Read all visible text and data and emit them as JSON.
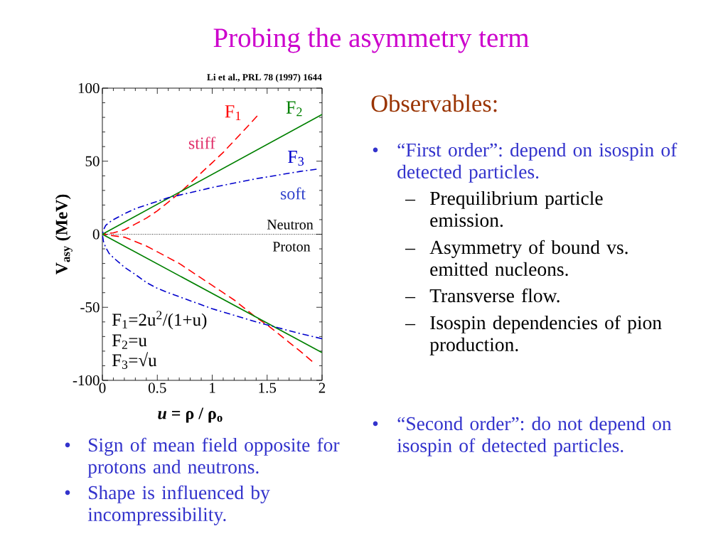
{
  "chart_data": {
    "type": "line",
    "title": "Probing the asymmetry term",
    "xlabel": "*u* = ρ / ρ$_{o}$",
    "ylabel": "V$_{asy}$ (MeV)",
    "xlim": [
      0,
      2
    ],
    "ylim": [
      -100,
      100
    ],
    "xticks": [
      0,
      0.5,
      1,
      1.5,
      2
    ],
    "yticks": [
      -100,
      -50,
      0,
      50,
      100
    ],
    "marker": "none",
    "series": [
      {
        "name": "F$_{1}$",
        "color": "#ff0000",
        "line_style": "dashed",
        "x": [
          1.41,
          1.3,
          1.2,
          1.1,
          1.0,
          0.9,
          0.8,
          0.7,
          0.6,
          0.5,
          0.4,
          0.3,
          0.2,
          0.1,
          0,
          0.2,
          0.3,
          0.4,
          0.5,
          0.6,
          0.7,
          0.8,
          0.9,
          1.0,
          1.1,
          1.2,
          1.3,
          1.4,
          1.5,
          1.6,
          1.7,
          1.8,
          1.91
        ],
        "values": [
          81,
          72,
          64,
          56,
          49,
          42,
          35,
          28,
          22,
          16,
          11,
          7,
          3,
          1,
          0,
          -2,
          -5,
          -8,
          -12,
          -16,
          -20,
          -25,
          -30,
          -35,
          -40,
          -45,
          -51,
          -57,
          -62,
          -68,
          -74,
          -80,
          -87
        ]
      },
      {
        "name": "F$_{2}$",
        "color": "#008000",
        "line_style": "solid",
        "x": [
          2,
          0,
          2
        ],
        "values": [
          82,
          0,
          -81
        ]
      },
      {
        "name": "F$_{3}$",
        "color": "#0000cc",
        "line_style": "dashdot",
        "x": [
          1.95,
          1.8,
          1.6,
          1.4,
          1.2,
          1.0,
          0.8,
          0.6,
          0.4,
          0.3,
          0.2,
          0.1,
          0.06,
          0.03,
          0.01,
          0,
          0.01,
          0.03,
          0.06,
          0.1,
          0.2,
          0.3,
          0.4,
          0.5,
          0.6,
          1.0,
          1.2,
          1.4,
          1.6,
          1.8,
          2.0
        ],
        "values": [
          44.5,
          43,
          40.5,
          38,
          35,
          32,
          28.5,
          25,
          20,
          17.5,
          14,
          10,
          8,
          6,
          3,
          0,
          -5,
          -9,
          -13,
          -16,
          -22.5,
          -27.5,
          -33,
          -37,
          -40,
          -51,
          -55.5,
          -60,
          -64,
          -68,
          -71.5
        ]
      }
    ],
    "ref_lines": [
      {
        "axis": "y",
        "value": 0,
        "color": "#000000",
        "line_style": "dotted"
      }
    ],
    "annotations": [
      "stiff",
      "soft",
      "Neutron",
      "Proton",
      "Li et al., PRL 78 (1997) 1644",
      "F$_{1}$=2u$^{2}$/(1+u)",
      "F$_{2}$=u",
      "F$_{3}$=√u",
      "Observables:",
      "• “First order”: depend on isospin of detected particles.",
      "– Prequilibrium particle emission.",
      "– Asymmetry of bound vs. emitted nucleons.",
      "– Transverse flow.",
      "– Isospin dependencies of pion production.",
      "• “Second order”: do not depend on isospin  of detected particles.",
      "• Sign of mean field opposite for protons and neutrons.",
      "• Shape is influenced by incompressibility."
    ]
  }
}
